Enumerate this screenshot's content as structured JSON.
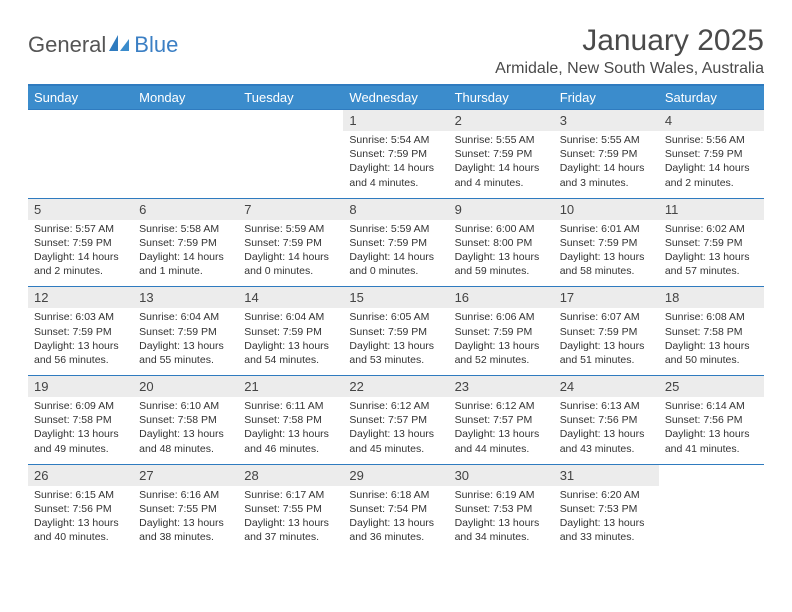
{
  "brand": {
    "general": "General",
    "blue": "Blue",
    "accent_color": "#3b8ccc",
    "icon_color": "#2f7bbf"
  },
  "title": "January 2025",
  "location": "Armidale, New South Wales, Australia",
  "colors": {
    "header_bar": "#3b8ccc",
    "rule": "#2f7bbf",
    "daynum_bg": "#ececec",
    "text": "#333333"
  },
  "weekdays": [
    "Sunday",
    "Monday",
    "Tuesday",
    "Wednesday",
    "Thursday",
    "Friday",
    "Saturday"
  ],
  "weeks": [
    [
      null,
      null,
      null,
      {
        "n": "1",
        "sr": "Sunrise: 5:54 AM",
        "ss": "Sunset: 7:59 PM",
        "dl": "Daylight: 14 hours and 4 minutes."
      },
      {
        "n": "2",
        "sr": "Sunrise: 5:55 AM",
        "ss": "Sunset: 7:59 PM",
        "dl": "Daylight: 14 hours and 4 minutes."
      },
      {
        "n": "3",
        "sr": "Sunrise: 5:55 AM",
        "ss": "Sunset: 7:59 PM",
        "dl": "Daylight: 14 hours and 3 minutes."
      },
      {
        "n": "4",
        "sr": "Sunrise: 5:56 AM",
        "ss": "Sunset: 7:59 PM",
        "dl": "Daylight: 14 hours and 2 minutes."
      }
    ],
    [
      {
        "n": "5",
        "sr": "Sunrise: 5:57 AM",
        "ss": "Sunset: 7:59 PM",
        "dl": "Daylight: 14 hours and 2 minutes."
      },
      {
        "n": "6",
        "sr": "Sunrise: 5:58 AM",
        "ss": "Sunset: 7:59 PM",
        "dl": "Daylight: 14 hours and 1 minute."
      },
      {
        "n": "7",
        "sr": "Sunrise: 5:59 AM",
        "ss": "Sunset: 7:59 PM",
        "dl": "Daylight: 14 hours and 0 minutes."
      },
      {
        "n": "8",
        "sr": "Sunrise: 5:59 AM",
        "ss": "Sunset: 7:59 PM",
        "dl": "Daylight: 14 hours and 0 minutes."
      },
      {
        "n": "9",
        "sr": "Sunrise: 6:00 AM",
        "ss": "Sunset: 8:00 PM",
        "dl": "Daylight: 13 hours and 59 minutes."
      },
      {
        "n": "10",
        "sr": "Sunrise: 6:01 AM",
        "ss": "Sunset: 7:59 PM",
        "dl": "Daylight: 13 hours and 58 minutes."
      },
      {
        "n": "11",
        "sr": "Sunrise: 6:02 AM",
        "ss": "Sunset: 7:59 PM",
        "dl": "Daylight: 13 hours and 57 minutes."
      }
    ],
    [
      {
        "n": "12",
        "sr": "Sunrise: 6:03 AM",
        "ss": "Sunset: 7:59 PM",
        "dl": "Daylight: 13 hours and 56 minutes."
      },
      {
        "n": "13",
        "sr": "Sunrise: 6:04 AM",
        "ss": "Sunset: 7:59 PM",
        "dl": "Daylight: 13 hours and 55 minutes."
      },
      {
        "n": "14",
        "sr": "Sunrise: 6:04 AM",
        "ss": "Sunset: 7:59 PM",
        "dl": "Daylight: 13 hours and 54 minutes."
      },
      {
        "n": "15",
        "sr": "Sunrise: 6:05 AM",
        "ss": "Sunset: 7:59 PM",
        "dl": "Daylight: 13 hours and 53 minutes."
      },
      {
        "n": "16",
        "sr": "Sunrise: 6:06 AM",
        "ss": "Sunset: 7:59 PM",
        "dl": "Daylight: 13 hours and 52 minutes."
      },
      {
        "n": "17",
        "sr": "Sunrise: 6:07 AM",
        "ss": "Sunset: 7:59 PM",
        "dl": "Daylight: 13 hours and 51 minutes."
      },
      {
        "n": "18",
        "sr": "Sunrise: 6:08 AM",
        "ss": "Sunset: 7:58 PM",
        "dl": "Daylight: 13 hours and 50 minutes."
      }
    ],
    [
      {
        "n": "19",
        "sr": "Sunrise: 6:09 AM",
        "ss": "Sunset: 7:58 PM",
        "dl": "Daylight: 13 hours and 49 minutes."
      },
      {
        "n": "20",
        "sr": "Sunrise: 6:10 AM",
        "ss": "Sunset: 7:58 PM",
        "dl": "Daylight: 13 hours and 48 minutes."
      },
      {
        "n": "21",
        "sr": "Sunrise: 6:11 AM",
        "ss": "Sunset: 7:58 PM",
        "dl": "Daylight: 13 hours and 46 minutes."
      },
      {
        "n": "22",
        "sr": "Sunrise: 6:12 AM",
        "ss": "Sunset: 7:57 PM",
        "dl": "Daylight: 13 hours and 45 minutes."
      },
      {
        "n": "23",
        "sr": "Sunrise: 6:12 AM",
        "ss": "Sunset: 7:57 PM",
        "dl": "Daylight: 13 hours and 44 minutes."
      },
      {
        "n": "24",
        "sr": "Sunrise: 6:13 AM",
        "ss": "Sunset: 7:56 PM",
        "dl": "Daylight: 13 hours and 43 minutes."
      },
      {
        "n": "25",
        "sr": "Sunrise: 6:14 AM",
        "ss": "Sunset: 7:56 PM",
        "dl": "Daylight: 13 hours and 41 minutes."
      }
    ],
    [
      {
        "n": "26",
        "sr": "Sunrise: 6:15 AM",
        "ss": "Sunset: 7:56 PM",
        "dl": "Daylight: 13 hours and 40 minutes."
      },
      {
        "n": "27",
        "sr": "Sunrise: 6:16 AM",
        "ss": "Sunset: 7:55 PM",
        "dl": "Daylight: 13 hours and 38 minutes."
      },
      {
        "n": "28",
        "sr": "Sunrise: 6:17 AM",
        "ss": "Sunset: 7:55 PM",
        "dl": "Daylight: 13 hours and 37 minutes."
      },
      {
        "n": "29",
        "sr": "Sunrise: 6:18 AM",
        "ss": "Sunset: 7:54 PM",
        "dl": "Daylight: 13 hours and 36 minutes."
      },
      {
        "n": "30",
        "sr": "Sunrise: 6:19 AM",
        "ss": "Sunset: 7:53 PM",
        "dl": "Daylight: 13 hours and 34 minutes."
      },
      {
        "n": "31",
        "sr": "Sunrise: 6:20 AM",
        "ss": "Sunset: 7:53 PM",
        "dl": "Daylight: 13 hours and 33 minutes."
      },
      null
    ]
  ]
}
